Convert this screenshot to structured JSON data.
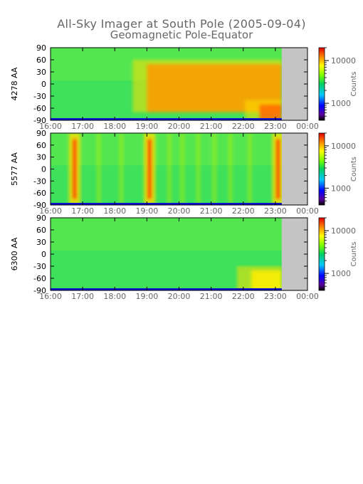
{
  "title": "All-Sky Imager at South Pole (2005-09-04)",
  "subtitle": "Geomagnetic Pole-Equator",
  "chart_data": {
    "type": "heatmap",
    "title": "All-Sky Imager at South Pole (2005-09-04)",
    "subtitle": "Geomagnetic Pole-Equator",
    "xlabel": "",
    "x_ticks": [
      "16:00",
      "17:00",
      "18:00",
      "19:00",
      "20:00",
      "21:00",
      "22:00",
      "23:00",
      "00:00"
    ],
    "xlim": [
      "16:00",
      "00:00"
    ],
    "y_ticks": [
      90,
      60,
      30,
      0,
      -30,
      -60,
      -90
    ],
    "ylim": [
      -90,
      90
    ],
    "data_end": "23:12",
    "colorbar": {
      "label": "Counts",
      "ticks": [
        1000,
        10000
      ],
      "scale": "log"
    },
    "panels": [
      {
        "ylabel": "4278 AA",
        "description_levels": {
          "baseline": "green",
          "bands": [
            {
              "from": "19:00",
              "to": "23:12",
              "lat_min": -70,
              "lat_max": 60,
              "level": "orange"
            },
            {
              "from": "22:30",
              "to": "23:12",
              "lat_min": -90,
              "lat_max": -40,
              "level": "dark-orange"
            }
          ],
          "bottom_edge": "blue"
        }
      },
      {
        "ylabel": "5577 AA",
        "description_levels": {
          "baseline": "green",
          "bright_columns": [
            "16:45",
            "19:05",
            "23:05"
          ],
          "bottom_edge": "blue"
        }
      },
      {
        "ylabel": "6300 AA",
        "description_levels": {
          "baseline": "green",
          "bands": [
            {
              "from": "22:15",
              "to": "23:12",
              "lat_min": -90,
              "lat_max": -30,
              "level": "yellow"
            }
          ],
          "bottom_edge": "blue"
        }
      }
    ]
  }
}
